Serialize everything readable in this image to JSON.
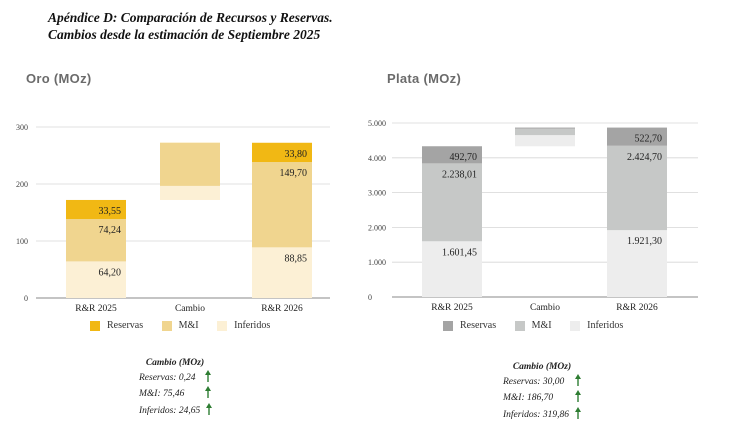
{
  "header": {
    "line1": "Apéndice D: Comparación de Recursos y Reservas.",
    "line2": "Cambios desde la estimación de Septiembre 2025"
  },
  "colors": {
    "gold_reservas": "#f1b814",
    "gold_mi": "#f0d58f",
    "gold_inferidos": "#fcf0d5",
    "silver_reservas": "#a4a4a4",
    "silver_mi": "#c6c8c7",
    "silver_inferidos": "#ededed",
    "arrow": "#2e7d32"
  },
  "chart_data": [
    {
      "type": "bar",
      "stacked": true,
      "waterfall": true,
      "title": "Oro  (MOz)",
      "categories": [
        "R&R 2025",
        "Cambio",
        "R&R 2026"
      ],
      "ylim": [
        0,
        300
      ],
      "yticks": [
        "0",
        "100",
        "200",
        "300"
      ],
      "grid": true,
      "legend_position": "bottom",
      "series": [
        {
          "name": "Inferidos",
          "values": [
            64.2,
            24.65,
            88.85
          ],
          "labels": [
            "64,20",
            "",
            "88,85"
          ]
        },
        {
          "name": "M&I",
          "values": [
            74.24,
            75.46,
            149.7
          ],
          "labels": [
            "74,24",
            "",
            "149,70"
          ]
        },
        {
          "name": "Reservas",
          "values": [
            33.55,
            0.24,
            33.8
          ],
          "labels": [
            "33,55",
            "",
            "33,80"
          ]
        }
      ],
      "change_box": {
        "heading": "Cambio (MOz)",
        "rows": [
          "Reservas: 0,24",
          "M&I: 75,46",
          "Inferidos: 24,65"
        ],
        "direction": "up"
      }
    },
    {
      "type": "bar",
      "stacked": true,
      "waterfall": true,
      "title": "Plata  (MOz)",
      "categories": [
        "R&R 2025",
        "Cambio",
        "R&R 2026"
      ],
      "ylim": [
        0,
        5000
      ],
      "yticks": [
        "0",
        "1.000",
        "2.000",
        "3.000",
        "4.000",
        "5.000"
      ],
      "grid": true,
      "legend_position": "bottom",
      "series": [
        {
          "name": "Inferidos",
          "values": [
            1601.45,
            319.86,
            1921.3
          ],
          "labels": [
            "1.601,45",
            "",
            "1.921,30"
          ]
        },
        {
          "name": "M&I",
          "values": [
            2238.01,
            186.7,
            2424.7
          ],
          "labels": [
            "2.238,01",
            "",
            "2.424,70"
          ]
        },
        {
          "name": "Reservas",
          "values": [
            492.7,
            30.0,
            522.7
          ],
          "labels": [
            "492,70",
            "",
            "522,70"
          ]
        }
      ],
      "change_box": {
        "heading": "Cambio (MOz)",
        "rows": [
          "Reservas: 30,00",
          "M&I: 186,70",
          "Inferidos: 319,86"
        ],
        "direction": "up"
      }
    }
  ],
  "legend": [
    "Reservas",
    "M&I",
    "Inferidos"
  ]
}
